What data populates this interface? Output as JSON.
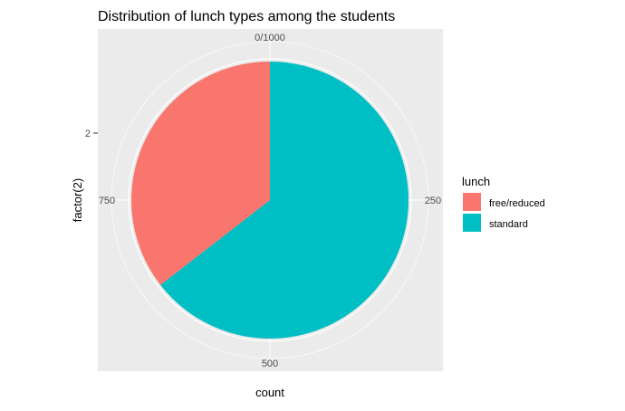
{
  "chart_data": {
    "type": "pie",
    "title": "Distribution of lunch types among the students",
    "xlabel": "count",
    "ylabel": "factor(2)",
    "y_tick_labels": [
      "2"
    ],
    "theta_ticks": [
      {
        "value": 0,
        "label": "0/1000"
      },
      {
        "value": 250,
        "label": "250"
      },
      {
        "value": 500,
        "label": "500"
      },
      {
        "value": 750,
        "label": "750"
      }
    ],
    "theta_range": [
      0,
      1000
    ],
    "total": 1000,
    "legend_title": "lunch",
    "legend_position": "right",
    "grid": true,
    "panel_background": "#EBEBEB",
    "grid_color": "#FFFFFF",
    "categories": [
      "free/reduced",
      "standard"
    ],
    "values": [
      355,
      645
    ],
    "colors": [
      "#F8766D",
      "#00BFC4"
    ],
    "stack_order": [
      "standard",
      "free/reduced"
    ]
  }
}
